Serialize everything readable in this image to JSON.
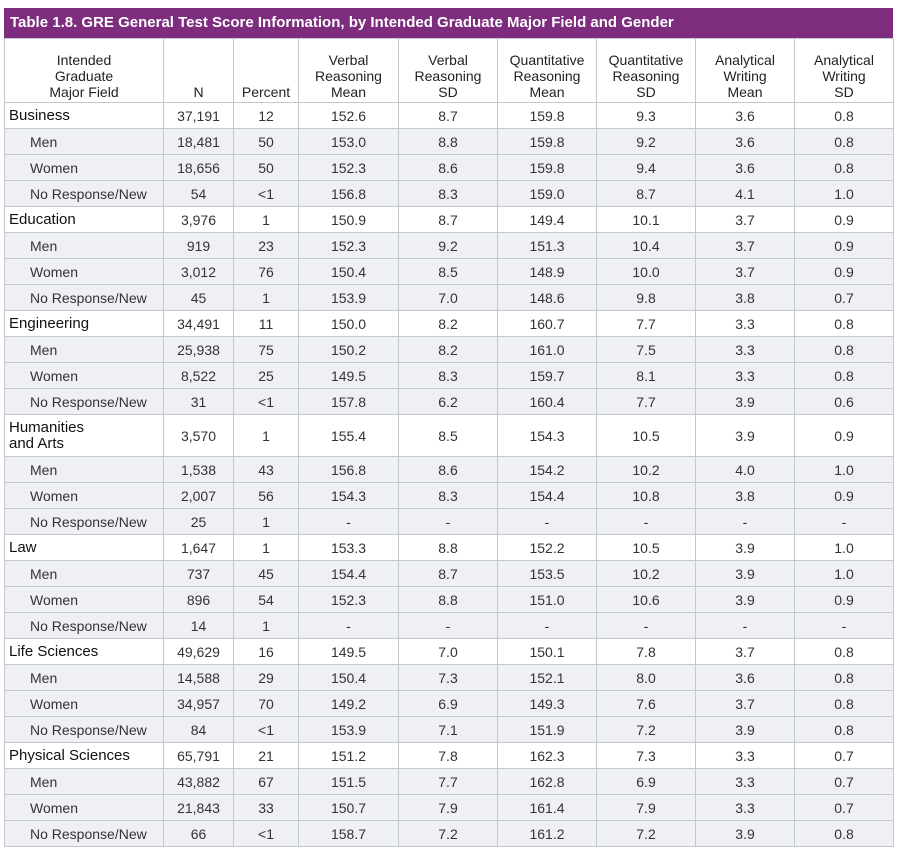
{
  "title": "Table 1.8. GRE General Test Score Information, by Intended Graduate Major Field and Gender",
  "columns": [
    "Intended\nGraduate\nMajor Field",
    "N",
    "Percent",
    "Verbal\nReasoning\nMean",
    "Verbal\nReasoning\nSD",
    "Quantitative\nReasoning\nMean",
    "Quantitative\nReasoning\nSD",
    "Analytical\nWriting\nMean",
    "Analytical\nWriting\nSD"
  ],
  "groups": [
    {
      "row": [
        "Business",
        "37,191",
        "12",
        "152.6",
        "8.7",
        "159.8",
        "9.3",
        "3.6",
        "0.8"
      ],
      "members": [
        [
          "Men",
          "18,481",
          "50",
          "153.0",
          "8.8",
          "159.8",
          "9.2",
          "3.6",
          "0.8"
        ],
        [
          "Women",
          "18,656",
          "50",
          "152.3",
          "8.6",
          "159.8",
          "9.4",
          "3.6",
          "0.8"
        ],
        [
          "No Response/New",
          "54",
          "<1",
          "156.8",
          "8.3",
          "159.0",
          "8.7",
          "4.1",
          "1.0"
        ]
      ]
    },
    {
      "row": [
        "Education",
        "3,976",
        "1",
        "150.9",
        "8.7",
        "149.4",
        "10.1",
        "3.7",
        "0.9"
      ],
      "members": [
        [
          "Men",
          "919",
          "23",
          "152.3",
          "9.2",
          "151.3",
          "10.4",
          "3.7",
          "0.9"
        ],
        [
          "Women",
          "3,012",
          "76",
          "150.4",
          "8.5",
          "148.9",
          "10.0",
          "3.7",
          "0.9"
        ],
        [
          "No Response/New",
          "45",
          "1",
          "153.9",
          "7.0",
          "148.6",
          "9.8",
          "3.8",
          "0.7"
        ]
      ]
    },
    {
      "row": [
        "Engineering",
        "34,491",
        "11",
        "150.0",
        "8.2",
        "160.7",
        "7.7",
        "3.3",
        "0.8"
      ],
      "members": [
        [
          "Men",
          "25,938",
          "75",
          "150.2",
          "8.2",
          "161.0",
          "7.5",
          "3.3",
          "0.8"
        ],
        [
          "Women",
          "8,522",
          "25",
          "149.5",
          "8.3",
          "159.7",
          "8.1",
          "3.3",
          "0.8"
        ],
        [
          "No Response/New",
          "31",
          "<1",
          "157.8",
          "6.2",
          "160.4",
          "7.7",
          "3.9",
          "0.6"
        ]
      ]
    },
    {
      "row": [
        "Humanities\nand Arts",
        "3,570",
        "1",
        "155.4",
        "8.5",
        "154.3",
        "10.5",
        "3.9",
        "0.9"
      ],
      "members": [
        [
          "Men",
          "1,538",
          "43",
          "156.8",
          "8.6",
          "154.2",
          "10.2",
          "4.0",
          "1.0"
        ],
        [
          "Women",
          "2,007",
          "56",
          "154.3",
          "8.3",
          "154.4",
          "10.8",
          "3.8",
          "0.9"
        ],
        [
          "No Response/New",
          "25",
          "1",
          "-",
          "-",
          "-",
          "-",
          "-",
          "-"
        ]
      ]
    },
    {
      "row": [
        "Law",
        "1,647",
        "1",
        "153.3",
        "8.8",
        "152.2",
        "10.5",
        "3.9",
        "1.0"
      ],
      "members": [
        [
          "Men",
          "737",
          "45",
          "154.4",
          "8.7",
          "153.5",
          "10.2",
          "3.9",
          "1.0"
        ],
        [
          "Women",
          "896",
          "54",
          "152.3",
          "8.8",
          "151.0",
          "10.6",
          "3.9",
          "0.9"
        ],
        [
          "No Response/New",
          "14",
          "1",
          "-",
          "-",
          "-",
          "-",
          "-",
          "-"
        ]
      ]
    },
    {
      "row": [
        "Life Sciences",
        "49,629",
        "16",
        "149.5",
        "7.0",
        "150.1",
        "7.8",
        "3.7",
        "0.8"
      ],
      "members": [
        [
          "Men",
          "14,588",
          "29",
          "150.4",
          "7.3",
          "152.1",
          "8.0",
          "3.6",
          "0.8"
        ],
        [
          "Women",
          "34,957",
          "70",
          "149.2",
          "6.9",
          "149.3",
          "7.6",
          "3.7",
          "0.8"
        ],
        [
          "No Response/New",
          "84",
          "<1",
          "153.9",
          "7.1",
          "151.9",
          "7.2",
          "3.9",
          "0.8"
        ]
      ]
    },
    {
      "row": [
        "Physical Sciences",
        "65,791",
        "21",
        "151.2",
        "7.8",
        "162.3",
        "7.3",
        "3.3",
        "0.7"
      ],
      "members": [
        [
          "Men",
          "43,882",
          "67",
          "151.5",
          "7.7",
          "162.8",
          "6.9",
          "3.3",
          "0.7"
        ],
        [
          "Women",
          "21,843",
          "33",
          "150.7",
          "7.9",
          "161.4",
          "7.9",
          "3.3",
          "0.7"
        ],
        [
          "No Response/New",
          "66",
          "<1",
          "158.7",
          "7.2",
          "161.2",
          "7.2",
          "3.9",
          "0.8"
        ]
      ]
    }
  ]
}
